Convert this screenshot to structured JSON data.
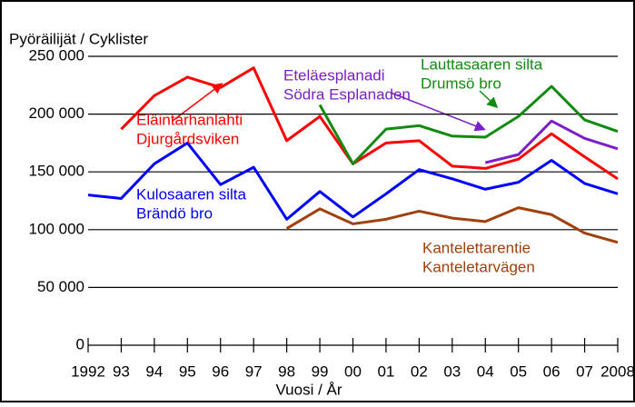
{
  "chart_data": {
    "type": "line",
    "y_label": "Pyöräilijät / Cyklister",
    "x_label": "Vuosi / År",
    "categories": [
      "1992",
      "93",
      "94",
      "95",
      "96",
      "97",
      "98",
      "99",
      "00",
      "01",
      "02",
      "03",
      "04",
      "05",
      "06",
      "07",
      "2008"
    ],
    "ylim": [
      0,
      250000
    ],
    "yticks": [
      {
        "value": 0,
        "label": "0"
      },
      {
        "value": 50000,
        "label": "50 000"
      },
      {
        "value": 100000,
        "label": "100 000"
      },
      {
        "value": 150000,
        "label": "150 000"
      },
      {
        "value": 200000,
        "label": "200 000"
      },
      {
        "value": 250000,
        "label": "250 000"
      }
    ],
    "grid": true,
    "series": [
      {
        "name": [
          "Kulosaaren silta",
          "Brändö bro"
        ],
        "color": "#0000ff",
        "values": [
          130000,
          127000,
          157000,
          175000,
          139000,
          154000,
          109000,
          133000,
          111000,
          131000,
          152000,
          144000,
          135000,
          141000,
          160000,
          140000,
          131000
        ]
      },
      {
        "name": [
          "Eläintarhanlahti",
          "Djurgårdsviken"
        ],
        "color": "#ff0000",
        "values": [
          null,
          187000,
          216000,
          232000,
          223000,
          240000,
          177000,
          198000,
          157000,
          175000,
          177000,
          155000,
          153000,
          161000,
          183000,
          163000,
          144000
        ]
      },
      {
        "name": [
          "Lauttasaaren silta",
          "Drumsö bro"
        ],
        "color": "#128a12",
        "values": [
          null,
          null,
          null,
          null,
          null,
          null,
          null,
          208000,
          157000,
          187000,
          190000,
          181000,
          180000,
          198000,
          224000,
          195000,
          185000
        ]
      },
      {
        "name": [
          "Eteläesplanadi",
          "Södra Esplanaden"
        ],
        "color": "#7b1fc8",
        "values": [
          null,
          null,
          null,
          null,
          null,
          null,
          null,
          null,
          null,
          null,
          null,
          null,
          158000,
          165000,
          194000,
          179000,
          170000
        ]
      },
      {
        "name": [
          "Kantelettarentie",
          "Kanteletarvägen"
        ],
        "color": "#a0400c",
        "values": [
          null,
          null,
          null,
          null,
          null,
          null,
          101000,
          118000,
          105000,
          109000,
          116000,
          110000,
          107000,
          119000,
          113000,
          97000,
          89000
        ]
      }
    ]
  }
}
